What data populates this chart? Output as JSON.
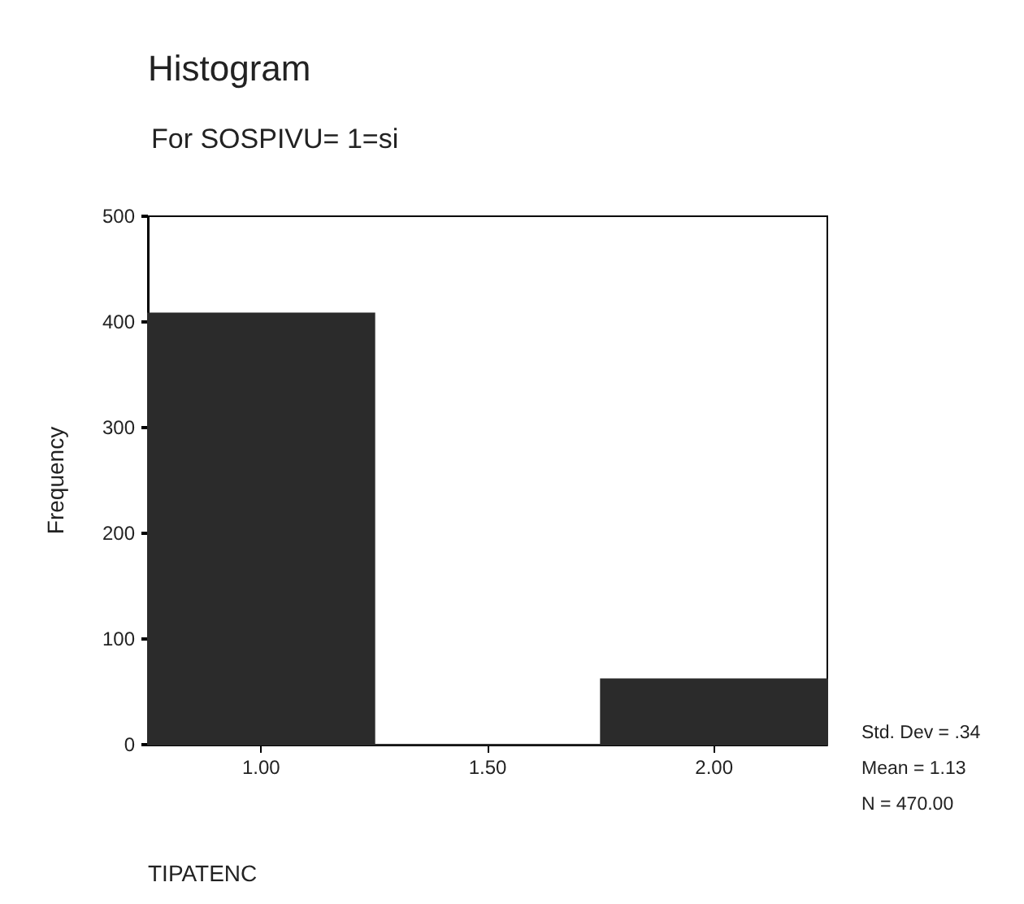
{
  "chart_data": {
    "type": "histogram",
    "title": "Histogram",
    "subtitle": "For SOSPIVU= 1=si",
    "xlabel": "TIPATENC",
    "ylabel": "Frequency",
    "bins": [
      0.75,
      1.25,
      1.75,
      2.25
    ],
    "values": [
      408,
      0,
      62
    ],
    "color": "#2b2b2b",
    "xlim": [
      0.75,
      2.25
    ],
    "xticks": [
      {
        "value": 1,
        "label": "1.00"
      },
      {
        "value": 1.5,
        "label": "1.50"
      },
      {
        "value": 2,
        "label": "2.00"
      }
    ],
    "ylim": [
      0,
      500
    ],
    "yticks": [
      0,
      100,
      200,
      300,
      400,
      500
    ],
    "grid": false,
    "annotations": [
      "Std. Dev = .34",
      "Mean = 1.13",
      "N = 470.00"
    ]
  }
}
